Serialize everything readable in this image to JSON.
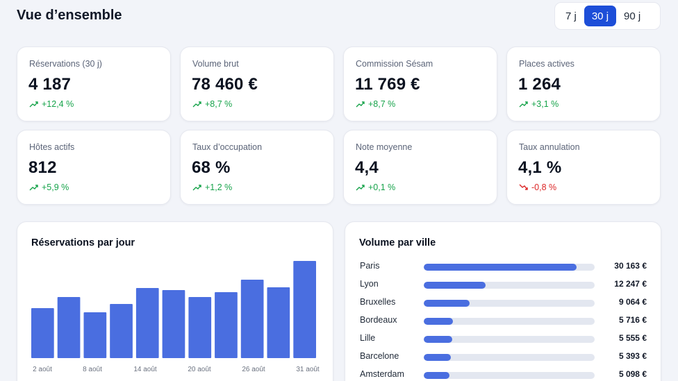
{
  "header": {
    "title": "Vue d’ensemble",
    "ranges": [
      {
        "label": "7 j",
        "active": false
      },
      {
        "label": "30 j",
        "active": true
      },
      {
        "label": "90 j",
        "active": false
      }
    ]
  },
  "colors": {
    "accent": "#1d4ed8",
    "bar": "#4a6ee0",
    "positive": "#16a34a",
    "negative": "#dc2626"
  },
  "kpis": [
    {
      "label": "Réservations (30 j)",
      "value": "4 187",
      "delta": "+12,4 %",
      "trend": "up"
    },
    {
      "label": "Volume brut",
      "value": "78 460 €",
      "delta": "+8,7 %",
      "trend": "up"
    },
    {
      "label": "Commission Sésam",
      "value": "11 769 €",
      "delta": "+8,7 %",
      "trend": "up"
    },
    {
      "label": "Places actives",
      "value": "1 264",
      "delta": "+3,1 %",
      "trend": "up"
    },
    {
      "label": "Hôtes actifs",
      "value": "812",
      "delta": "+5,9 %",
      "trend": "up"
    },
    {
      "label": "Taux d’occupation",
      "value": "68 %",
      "delta": "+1,2 %",
      "trend": "up"
    },
    {
      "label": "Note moyenne",
      "value": "4,4",
      "delta": "+0,1 %",
      "trend": "up"
    },
    {
      "label": "Taux annulation",
      "value": "4,1 %",
      "delta": "-0,8 %",
      "trend": "down"
    }
  ],
  "bookings_chart": {
    "title": "Réservations par jour",
    "chart_data": {
      "type": "bar",
      "values": [
        72,
        88,
        66,
        78,
        101,
        98,
        88,
        95,
        113,
        102,
        140
      ],
      "tick_labels": [
        "2 août",
        "8 août",
        "14 août",
        "20 août",
        "26 août",
        "31 août"
      ],
      "ylim": [
        0,
        140
      ]
    }
  },
  "city_chart": {
    "title": "Volume par ville",
    "max_value": 30163,
    "cities": [
      {
        "name": "Paris",
        "value": 30163,
        "label": "30 163 €"
      },
      {
        "name": "Lyon",
        "value": 12247,
        "label": "12 247 €"
      },
      {
        "name": "Bruxelles",
        "value": 9064,
        "label": "9 064 €"
      },
      {
        "name": "Bordeaux",
        "value": 5716,
        "label": "5 716 €"
      },
      {
        "name": "Lille",
        "value": 5555,
        "label": "5 555 €"
      },
      {
        "name": "Barcelone",
        "value": 5393,
        "label": "5 393 €"
      },
      {
        "name": "Amsterdam",
        "value": 5098,
        "label": "5 098 €"
      }
    ]
  }
}
